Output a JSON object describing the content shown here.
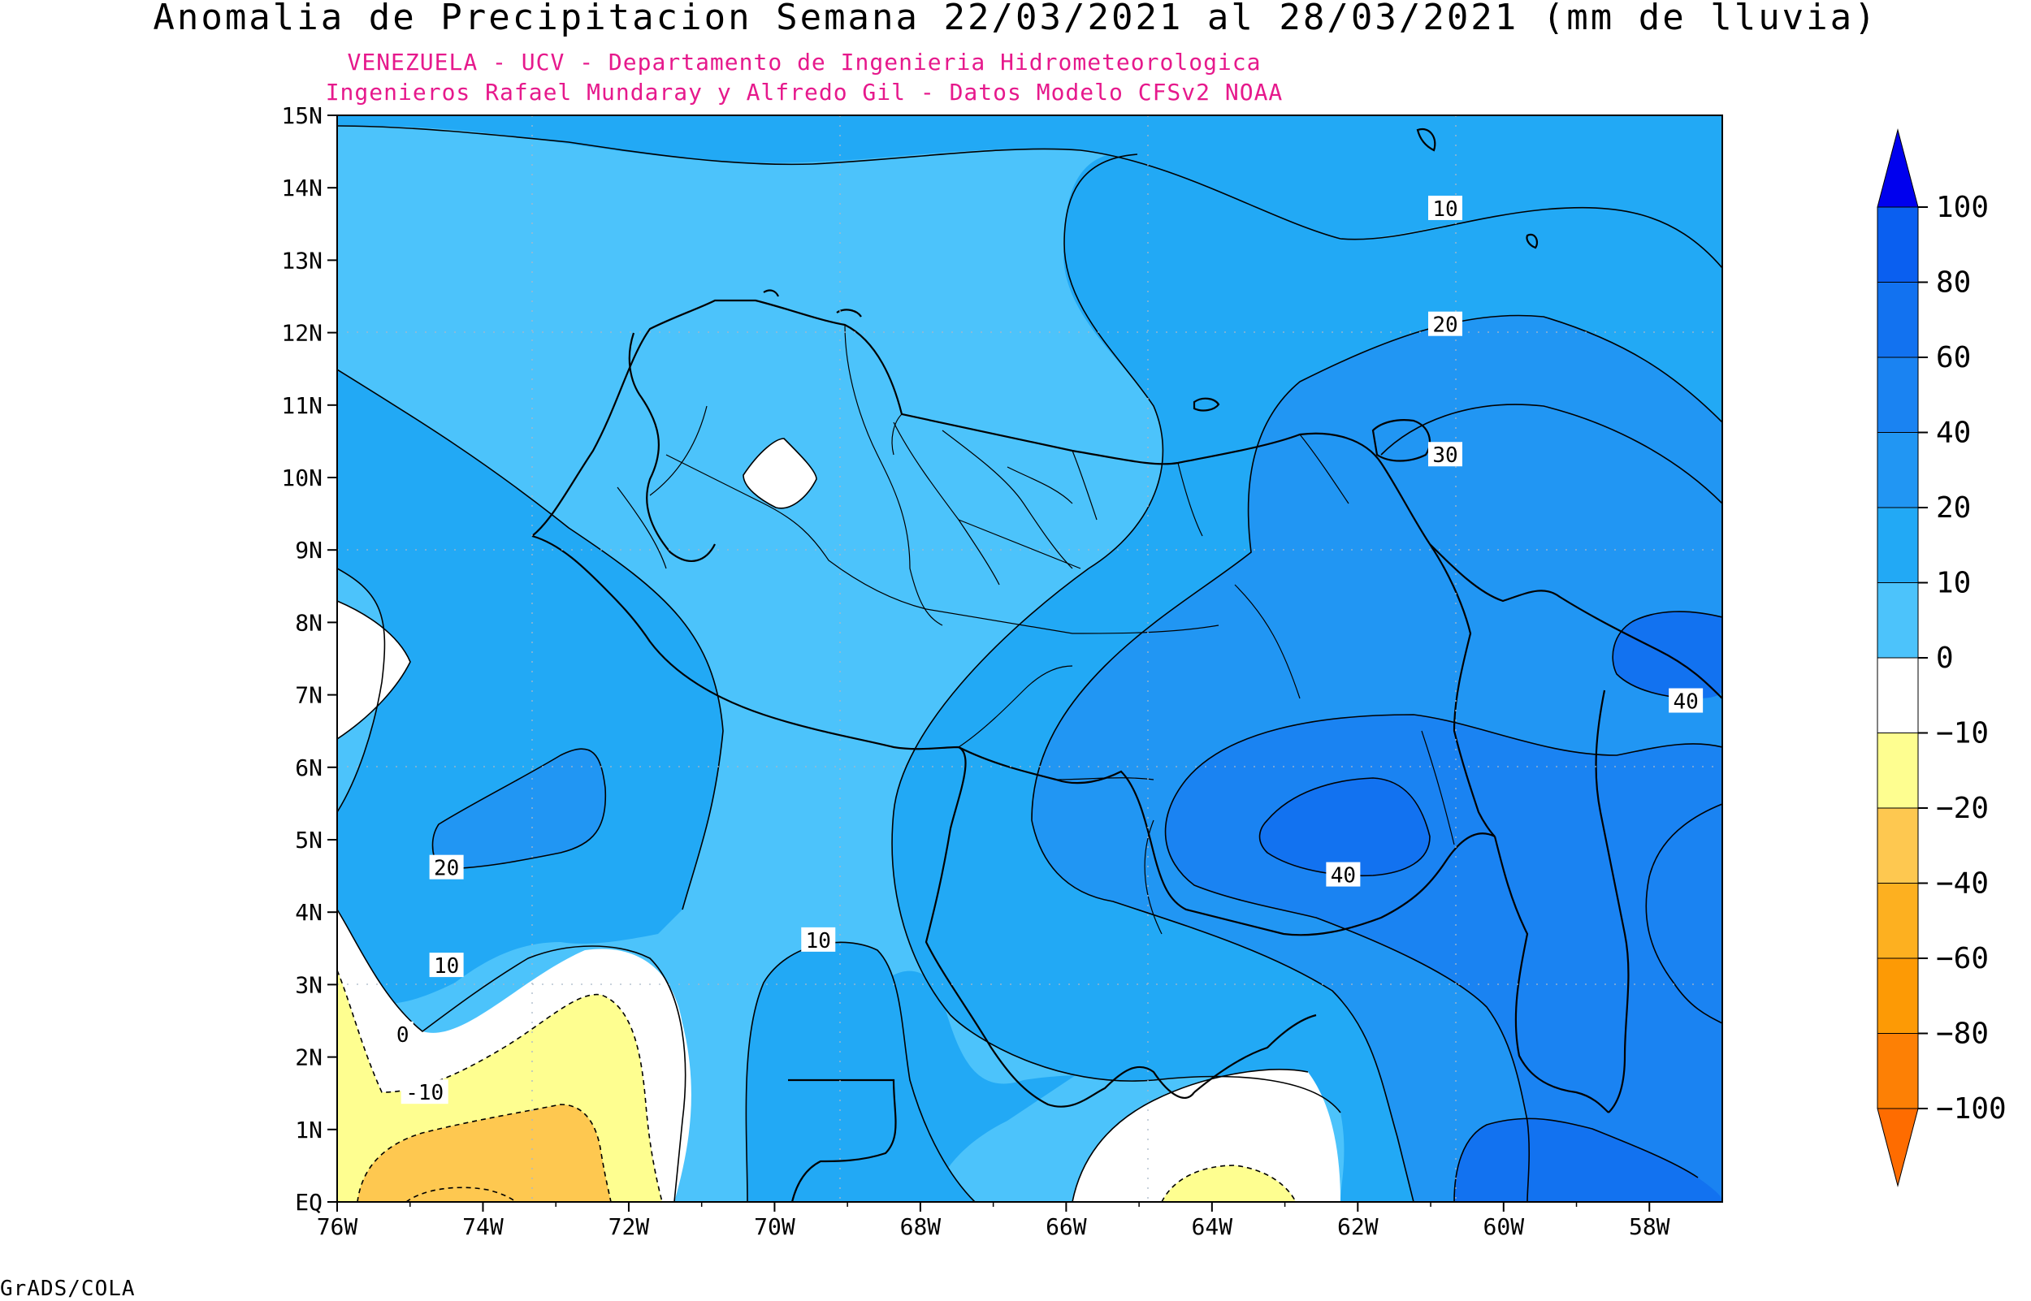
{
  "title": "Anomalia de Precipitacion Semana 22/03/2021 al 28/03/2021 (mm de lluvia)",
  "subtitle_line1": "VENEZUELA - UCV - Departamento de Ingenieria Hidrometeorologica",
  "subtitle_line2": "Ingenieros Rafael Mundaray y Alfredo Gil - Datos Modelo CFSv2 NOAA",
  "footer": "GrADS/COLA",
  "map": {
    "lon_range": [
      -76,
      -57
    ],
    "lat_range": [
      0,
      15
    ],
    "lat_ticks": [
      "15N",
      "14N",
      "13N",
      "12N",
      "11N",
      "10N",
      "9N",
      "8N",
      "7N",
      "6N",
      "5N",
      "4N",
      "3N",
      "2N",
      "1N",
      "EQ"
    ],
    "lon_ticks": [
      "76W",
      "74W",
      "72W",
      "70W",
      "68W",
      "66W",
      "64W",
      "62W",
      "60W",
      "58W"
    ],
    "contour_labels": [
      {
        "text": "10",
        "lon": -60.8,
        "lat": 13.7
      },
      {
        "text": "20",
        "lon": -60.8,
        "lat": 12.1
      },
      {
        "text": "30",
        "lon": -60.8,
        "lat": 10.3
      },
      {
        "text": "40",
        "lon": -57.5,
        "lat": 6.9
      },
      {
        "text": "40",
        "lon": -62.2,
        "lat": 4.5
      },
      {
        "text": "20",
        "lon": -74.5,
        "lat": 4.6
      },
      {
        "text": "10",
        "lon": -74.5,
        "lat": 3.25
      },
      {
        "text": "10",
        "lon": -69.4,
        "lat": 3.6
      },
      {
        "text": "0",
        "lon": -75.1,
        "lat": 2.3
      },
      {
        "text": "-10",
        "lon": -74.8,
        "lat": 1.5
      }
    ]
  },
  "colorbar": {
    "labels": [
      "100",
      "80",
      "60",
      "40",
      "20",
      "10",
      "0",
      "-10",
      "-20",
      "-40",
      "-60",
      "-80",
      "-100"
    ],
    "colors": [
      "#0a5ff0",
      "#1272f0",
      "#1a83f2",
      "#2196f3",
      "#22a9f5",
      "#4cc3fb",
      "#ffffff",
      "#fefe90",
      "#fec850",
      "#fdb020",
      "#fd9a05",
      "#fd8005"
    ],
    "top_triangle_color": "#0000ee",
    "bottom_triangle_color": "#fe6c00"
  }
}
